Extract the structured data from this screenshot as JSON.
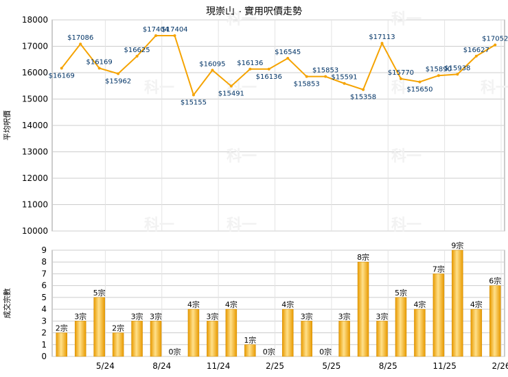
{
  "title": "現崇山 - 實用呎價走勢",
  "watermark": "科一",
  "colors": {
    "line": "#F5A300",
    "bar_light": "#FFE08A",
    "bar_dark": "#E89A00",
    "grid": "#CCCCCC",
    "label": "#003366"
  },
  "chart_data": [
    {
      "type": "line",
      "ylabel": "平均呎價",
      "ylim": [
        10000,
        18000
      ],
      "yticks": [
        "10000",
        "11000",
        "12000",
        "13000",
        "14000",
        "15000",
        "16000",
        "17000",
        "18000"
      ],
      "grid": true,
      "values": [
        16169,
        17086,
        16169,
        15962,
        16625,
        17404,
        17404,
        15155,
        16095,
        15491,
        16136,
        16136,
        16545,
        15853,
        15853,
        15591,
        15358,
        17113,
        15770,
        15650,
        15890,
        15938,
        16627,
        17052
      ],
      "labels": [
        "$16169",
        "$17086",
        "$16169",
        "$15962",
        "$16625",
        "$17404",
        "$17404",
        "$15155",
        "$16095",
        "$15491",
        "$16136",
        "$16136",
        "$16545",
        "$15853",
        "$15853",
        "$15591",
        "$15358",
        "$17113",
        "$15770",
        "$15650",
        "$15890",
        "$15938",
        "$16627",
        "$17052"
      ]
    },
    {
      "type": "bar",
      "ylabel": "成交宗數",
      "ylim": [
        0,
        9
      ],
      "yticks": [
        "0",
        "1",
        "2",
        "3",
        "4",
        "5",
        "6",
        "7",
        "8",
        "9"
      ],
      "grid": true,
      "values": [
        2,
        3,
        5,
        2,
        3,
        3,
        0,
        4,
        3,
        4,
        1,
        0,
        4,
        3,
        0,
        3,
        8,
        3,
        5,
        4,
        7,
        9,
        4,
        6
      ],
      "labels": [
        "2宗",
        "3宗",
        "5宗",
        "2宗",
        "3宗",
        "3宗",
        "0宗",
        "4宗",
        "3宗",
        "4宗",
        "1宗",
        "0宗",
        "4宗",
        "3宗",
        "0宗",
        "3宗",
        "8宗",
        "3宗",
        "5宗",
        "4宗",
        "7宗",
        "9宗",
        "4宗",
        "6宗"
      ],
      "xticks": [
        "5/24",
        "8/24",
        "11/24",
        "2/25",
        "5/25",
        "8/25",
        "11/25",
        "2/26"
      ]
    }
  ]
}
